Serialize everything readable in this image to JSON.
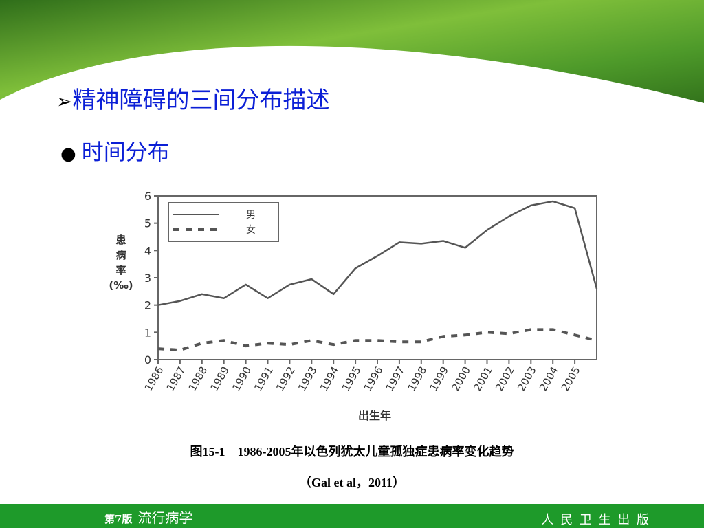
{
  "slide": {
    "title": "精神障碍的三间分布描述",
    "bullet": "时间分布",
    "caption": [
      "图15-1　1986-2005年以色列犹太儿童孤独症患病率变化趋势",
      "（Gal  et al，2011）"
    ],
    "footer_left": {
      "edition": "第7版",
      "course": "流行病学"
    },
    "footer_right": "人 民 卫 生 出 版"
  },
  "chart_data": {
    "type": "line",
    "x_label": "出生年",
    "y_label": [
      "患",
      "病",
      "率",
      "(‰)"
    ],
    "categories": [
      "1986",
      "1987",
      "1988",
      "1989",
      "1990",
      "1991",
      "1992",
      "1993",
      "1994",
      "1995",
      "1996",
      "1997",
      "1998",
      "1999",
      "2000",
      "2001",
      "2002",
      "2003",
      "2004",
      "2005",
      null
    ],
    "series": [
      {
        "name": "男",
        "color": "#555555",
        "dash": "solid",
        "values": [
          2.0,
          2.15,
          2.4,
          2.25,
          2.75,
          2.25,
          2.75,
          2.95,
          2.4,
          3.35,
          3.8,
          4.3,
          4.25,
          4.35,
          4.1,
          4.75,
          5.25,
          5.65,
          5.8,
          5.55,
          2.6
        ]
      },
      {
        "name": "女",
        "color": "#555555",
        "dash": "dashed",
        "values": [
          0.4,
          0.35,
          0.6,
          0.7,
          0.5,
          0.6,
          0.55,
          0.7,
          0.55,
          0.7,
          0.7,
          0.65,
          0.65,
          0.85,
          0.9,
          1.0,
          0.95,
          1.1,
          1.1,
          0.9,
          0.7
        ]
      }
    ],
    "ylim": [
      0,
      6
    ],
    "yticks": [
      0,
      1,
      2,
      3,
      4,
      5,
      6
    ],
    "grid": false,
    "legend": "upper left"
  }
}
